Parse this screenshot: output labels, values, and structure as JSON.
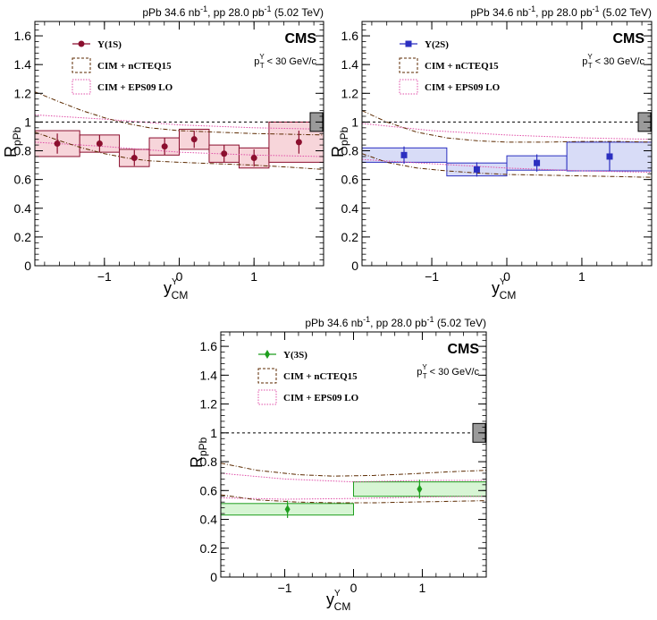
{
  "chart_data": [
    {
      "type": "scatter",
      "header": {
        "pre1": "pPb 34.6 nb",
        "sup1": "-1",
        "pre2": ", pp 28.0 pb",
        "sup2": "-1",
        "post": " (5.02 TeV)"
      },
      "cms": "CMS",
      "cut": {
        "p": "p",
        "sup": "Υ",
        "sub": "T",
        "rest": " < 30 GeV/c"
      },
      "ylabel": {
        "main": "R",
        "sub": "pPb"
      },
      "xlabel": {
        "main": "y",
        "sup": "Υ",
        "sub": "CM"
      },
      "xlim": [
        -1.93,
        1.93
      ],
      "ylim": [
        0,
        1.7
      ],
      "xticks": [
        {
          "v": -1,
          "label": "−1"
        },
        {
          "v": 0,
          "label": "0"
        },
        {
          "v": 1,
          "label": "1"
        }
      ],
      "yticks": [
        {
          "v": 0,
          "label": "0"
        },
        {
          "v": 0.2,
          "label": "0.2"
        },
        {
          "v": 0.4,
          "label": "0.4"
        },
        {
          "v": 0.6,
          "label": "0.6"
        },
        {
          "v": 0.8,
          "label": "0.8"
        },
        {
          "v": 1,
          "label": "1"
        },
        {
          "v": 1.2,
          "label": "1.2"
        },
        {
          "v": 1.4,
          "label": "1.4"
        },
        {
          "v": 1.6,
          "label": "1.6"
        }
      ],
      "legend": [
        {
          "kind": "data",
          "label": "Υ(1S)"
        },
        {
          "kind": "cim-nct",
          "label": "CIM + nCTEQ15"
        },
        {
          "kind": "cim-eps",
          "label": "CIM + EPS09 LO"
        }
      ],
      "series": {
        "marker": "circle",
        "color": "#8b0f2e",
        "fill": "#f7d5da",
        "points": [
          {
            "x": -1.63,
            "xlo": -1.93,
            "xhi": -1.33,
            "y": 0.85,
            "stat": 0.07,
            "syst": 0.09
          },
          {
            "x": -1.065,
            "xlo": -1.33,
            "xhi": -0.8,
            "y": 0.85,
            "stat": 0.06,
            "syst": 0.06
          },
          {
            "x": -0.6,
            "xlo": -0.8,
            "xhi": -0.4,
            "y": 0.75,
            "stat": 0.055,
            "syst": 0.06
          },
          {
            "x": -0.195,
            "xlo": -0.4,
            "xhi": 0.0,
            "y": 0.83,
            "stat": 0.06,
            "syst": 0.06
          },
          {
            "x": 0.2,
            "xlo": 0.0,
            "xhi": 0.4,
            "y": 0.88,
            "stat": 0.06,
            "syst": 0.07
          },
          {
            "x": 0.6,
            "xlo": 0.4,
            "xhi": 0.8,
            "y": 0.78,
            "stat": 0.06,
            "syst": 0.06
          },
          {
            "x": 1.0,
            "xlo": 0.8,
            "xhi": 1.2,
            "y": 0.75,
            "stat": 0.06,
            "syst": 0.07
          },
          {
            "x": 1.6,
            "xlo": 1.2,
            "xhi": 1.93,
            "y": 0.86,
            "stat": 0.08,
            "syst": 0.14
          }
        ]
      },
      "nct_upper": {
        "x": [
          -1.93,
          -1.6,
          -1.3,
          -1.0,
          -0.7,
          -0.4,
          0.0,
          0.5,
          1.0,
          1.5,
          1.93
        ],
        "y": [
          1.21,
          1.14,
          1.08,
          1.03,
          0.99,
          0.96,
          0.94,
          0.93,
          0.92,
          0.915,
          0.91
        ]
      },
      "nct_lower": {
        "x": [
          -1.93,
          -1.6,
          -1.3,
          -1.0,
          -0.7,
          -0.4,
          0.0,
          0.5,
          1.0,
          1.5,
          1.93
        ],
        "y": [
          0.93,
          0.87,
          0.82,
          0.78,
          0.75,
          0.73,
          0.72,
          0.71,
          0.7,
          0.685,
          0.67
        ]
      },
      "eps_upper": {
        "x": [
          -1.93,
          -1.0,
          0.0,
          1.0,
          1.93
        ],
        "y": [
          1.05,
          1.02,
          0.98,
          0.96,
          0.95
        ]
      },
      "eps_lower": {
        "x": [
          -1.93,
          -1.0,
          0.0,
          1.0,
          1.93
        ],
        "y": [
          0.86,
          0.83,
          0.79,
          0.77,
          0.76
        ]
      },
      "global_unc": 0.065
    },
    {
      "type": "scatter",
      "header": {
        "pre1": "pPb 34.6 nb",
        "sup1": "-1",
        "pre2": ", pp 28.0 pb",
        "sup2": "-1",
        "post": " (5.02 TeV)"
      },
      "cms": "CMS",
      "cut": {
        "p": "p",
        "sup": "Υ",
        "sub": "T",
        "rest": " < 30 GeV/c"
      },
      "ylabel": {
        "main": "R",
        "sub": "pPb"
      },
      "xlabel": {
        "main": "y",
        "sup": "Υ",
        "sub": "CM"
      },
      "xlim": [
        -1.93,
        1.93
      ],
      "ylim": [
        0,
        1.7
      ],
      "xticks": [
        {
          "v": -1,
          "label": "−1"
        },
        {
          "v": 0,
          "label": "0"
        },
        {
          "v": 1,
          "label": "1"
        }
      ],
      "yticks": [
        {
          "v": 0,
          "label": "0"
        },
        {
          "v": 0.2,
          "label": "0.2"
        },
        {
          "v": 0.4,
          "label": "0.4"
        },
        {
          "v": 0.6,
          "label": "0.6"
        },
        {
          "v": 0.8,
          "label": "0.8"
        },
        {
          "v": 1,
          "label": "1"
        },
        {
          "v": 1.2,
          "label": "1.2"
        },
        {
          "v": 1.4,
          "label": "1.4"
        },
        {
          "v": 1.6,
          "label": "1.6"
        }
      ],
      "legend": [
        {
          "kind": "data",
          "label": "Υ(2S)"
        },
        {
          "kind": "cim-nct",
          "label": "CIM + nCTEQ15"
        },
        {
          "kind": "cim-eps",
          "label": "CIM + EPS09 LO"
        }
      ],
      "series": {
        "marker": "square",
        "color": "#2b2fc0",
        "fill": "#d8dcf7",
        "points": [
          {
            "x": -1.37,
            "xlo": -1.93,
            "xhi": -0.8,
            "y": 0.77,
            "stat": 0.06,
            "syst": 0.05
          },
          {
            "x": -0.4,
            "xlo": -0.8,
            "xhi": 0.0,
            "y": 0.67,
            "stat": 0.05,
            "syst": 0.045
          },
          {
            "x": 0.4,
            "xlo": 0.0,
            "xhi": 0.8,
            "y": 0.715,
            "stat": 0.06,
            "syst": 0.05
          },
          {
            "x": 1.37,
            "xlo": 0.8,
            "xhi": 1.93,
            "y": 0.76,
            "stat": 0.1,
            "syst": 0.1
          }
        ]
      },
      "nct_upper": {
        "x": [
          -1.93,
          -1.6,
          -1.2,
          -0.8,
          -0.4,
          0.0,
          0.5,
          1.0,
          1.5,
          1.93
        ],
        "y": [
          1.08,
          1.0,
          0.93,
          0.89,
          0.87,
          0.86,
          0.86,
          0.865,
          0.865,
          0.86
        ]
      },
      "nct_lower": {
        "x": [
          -1.93,
          -1.6,
          -1.2,
          -0.8,
          -0.4,
          0.0,
          0.5,
          1.0,
          1.5,
          1.93
        ],
        "y": [
          0.78,
          0.72,
          0.68,
          0.66,
          0.645,
          0.635,
          0.63,
          0.625,
          0.62,
          0.615
        ]
      },
      "eps_upper": {
        "x": [
          -1.93,
          -1.0,
          0.0,
          1.0,
          1.93
        ],
        "y": [
          0.99,
          0.94,
          0.91,
          0.89,
          0.88
        ]
      },
      "eps_lower": {
        "x": [
          -1.93,
          -1.0,
          0.0,
          1.0,
          1.93
        ],
        "y": [
          0.74,
          0.71,
          0.68,
          0.66,
          0.65
        ]
      },
      "global_unc": 0.065
    },
    {
      "type": "scatter",
      "header": {
        "pre1": "pPb 34.6 nb",
        "sup1": "-1",
        "pre2": ", pp 28.0 pb",
        "sup2": "-1",
        "post": " (5.02 TeV)"
      },
      "cms": "CMS",
      "cut": {
        "p": "p",
        "sup": "Υ",
        "sub": "T",
        "rest": " < 30 GeV/c"
      },
      "ylabel": {
        "main": "R",
        "sub": "pPb"
      },
      "xlabel": {
        "main": "y",
        "sup": "Υ",
        "sub": "CM"
      },
      "xlim": [
        -1.93,
        1.93
      ],
      "ylim": [
        0,
        1.7
      ],
      "xticks": [
        {
          "v": -1,
          "label": "−1"
        },
        {
          "v": 0,
          "label": "0"
        },
        {
          "v": 1,
          "label": "1"
        }
      ],
      "yticks": [
        {
          "v": 0,
          "label": "0"
        },
        {
          "v": 0.2,
          "label": "0.2"
        },
        {
          "v": 0.4,
          "label": "0.4"
        },
        {
          "v": 0.6,
          "label": "0.6"
        },
        {
          "v": 0.8,
          "label": "0.8"
        },
        {
          "v": 1,
          "label": "1"
        },
        {
          "v": 1.2,
          "label": "1.2"
        },
        {
          "v": 1.4,
          "label": "1.4"
        },
        {
          "v": 1.6,
          "label": "1.6"
        }
      ],
      "legend": [
        {
          "kind": "data",
          "label": "Υ(3S)"
        },
        {
          "kind": "cim-nct",
          "label": "CIM + nCTEQ15"
        },
        {
          "kind": "cim-eps",
          "label": "CIM + EPS09 LO"
        }
      ],
      "series": {
        "marker": "diamond",
        "color": "#1e9e1e",
        "fill": "#d7f5d4",
        "points": [
          {
            "x": -0.96,
            "xlo": -1.93,
            "xhi": 0.0,
            "y": 0.47,
            "stat": 0.06,
            "syst": 0.04
          },
          {
            "x": 0.96,
            "xlo": 0.0,
            "xhi": 1.93,
            "y": 0.61,
            "stat": 0.065,
            "syst": 0.05
          }
        ]
      },
      "nct_upper": {
        "x": [
          -1.93,
          -1.4,
          -0.8,
          -0.3,
          0.3,
          0.8,
          1.4,
          1.93
        ],
        "y": [
          0.79,
          0.74,
          0.71,
          0.7,
          0.705,
          0.715,
          0.73,
          0.74
        ]
      },
      "nct_lower": {
        "x": [
          -1.93,
          -1.4,
          -0.8,
          -0.3,
          0.3,
          0.8,
          1.4,
          1.93
        ],
        "y": [
          0.57,
          0.535,
          0.52,
          0.515,
          0.515,
          0.52,
          0.525,
          0.53
        ]
      },
      "eps_upper": {
        "x": [
          -1.93,
          -1.0,
          0.0,
          1.0,
          1.93
        ],
        "y": [
          0.72,
          0.68,
          0.66,
          0.67,
          0.67
        ]
      },
      "eps_lower": {
        "x": [
          -1.93,
          -1.0,
          0.0,
          1.0,
          1.93
        ],
        "y": [
          0.55,
          0.54,
          0.545,
          0.555,
          0.56
        ]
      },
      "global_unc": 0.065
    }
  ]
}
